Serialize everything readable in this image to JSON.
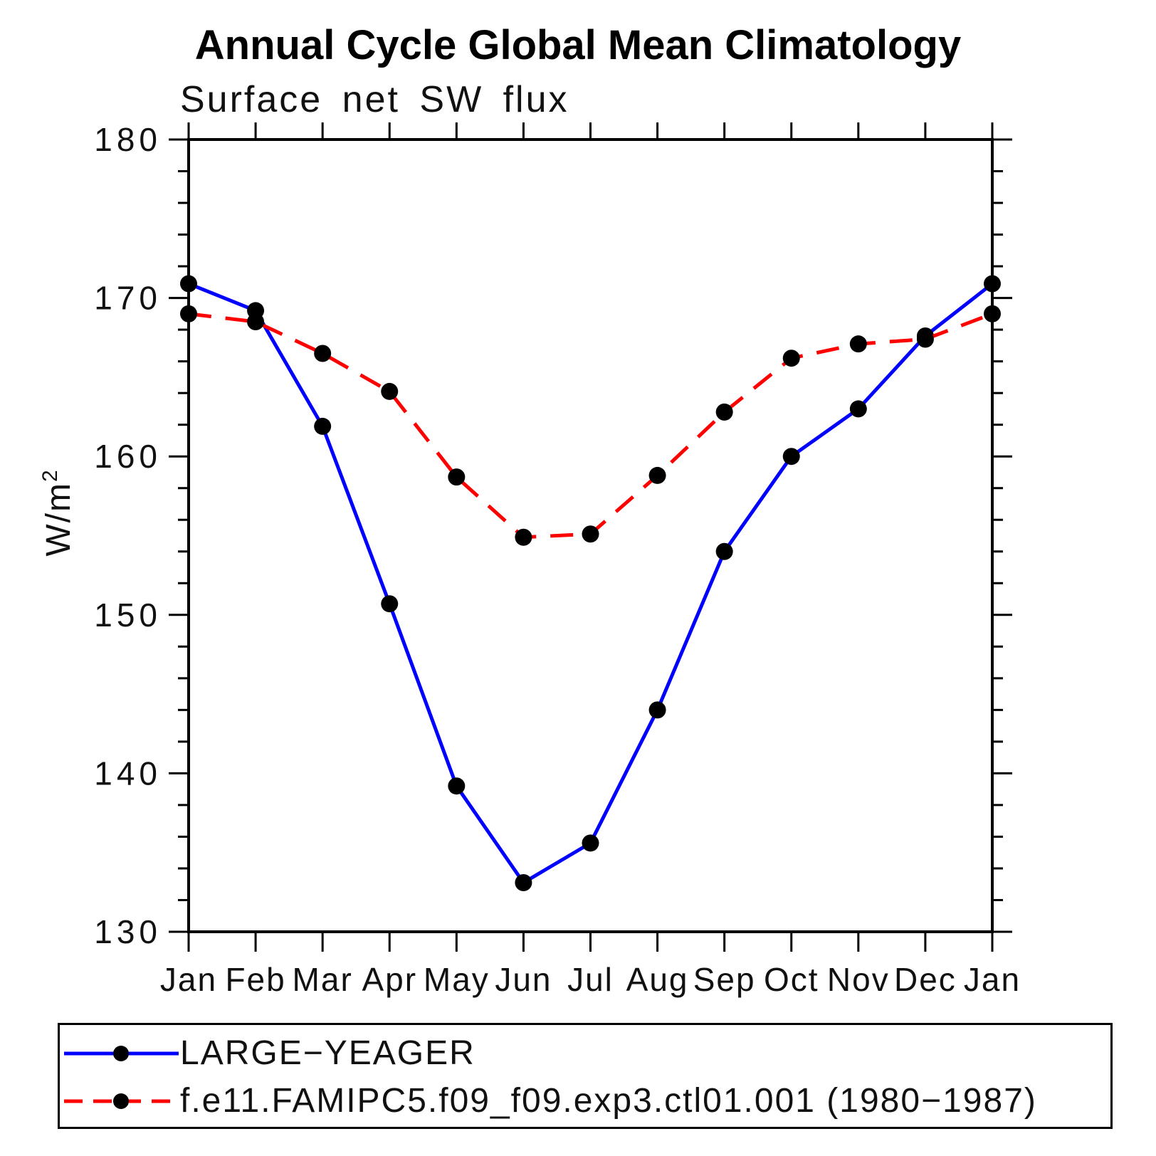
{
  "page": {
    "background_color": "#ffffff"
  },
  "chart": {
    "title": "Annual Cycle Global Mean Climatology",
    "subtitle": "Surface net SW flux",
    "ylabel_base": "W/m",
    "ylabel_exp": "2"
  },
  "chart_data": {
    "type": "line",
    "title": "Annual Cycle Global Mean Climatology",
    "subtitle": "Surface net SW flux",
    "ylabel": "W/m^2",
    "xlabel": "",
    "categories": [
      "Jan",
      "Feb",
      "Mar",
      "Apr",
      "May",
      "Jun",
      "Jul",
      "Aug",
      "Sep",
      "Oct",
      "Nov",
      "Dec",
      "Jan"
    ],
    "series": [
      {
        "name": "LARGE−YEAGER",
        "color": "#0000ff",
        "line_style": "solid",
        "marker": "circle",
        "marker_color": "#000000",
        "values": [
          170.9,
          169.2,
          161.9,
          150.7,
          139.2,
          133.1,
          135.6,
          144.0,
          154.0,
          160.0,
          163.0,
          167.6,
          170.9
        ]
      },
      {
        "name": "f.e11.FAMIPC5.f09_f09.exp3.ctl01.001 (1980−1987)",
        "color": "#ff0000",
        "line_style": "dashed",
        "marker": "circle",
        "marker_color": "#000000",
        "values": [
          169.0,
          168.5,
          166.5,
          164.1,
          158.7,
          154.9,
          155.1,
          158.8,
          162.8,
          166.2,
          167.1,
          167.4,
          169.0
        ]
      }
    ],
    "ylim": [
      130,
      180
    ],
    "y_major_ticks": [
      130,
      140,
      150,
      160,
      170,
      180
    ],
    "y_minor_step": 2,
    "grid": false,
    "axis_color": "#000000",
    "legend_position": "bottom-left-box"
  }
}
